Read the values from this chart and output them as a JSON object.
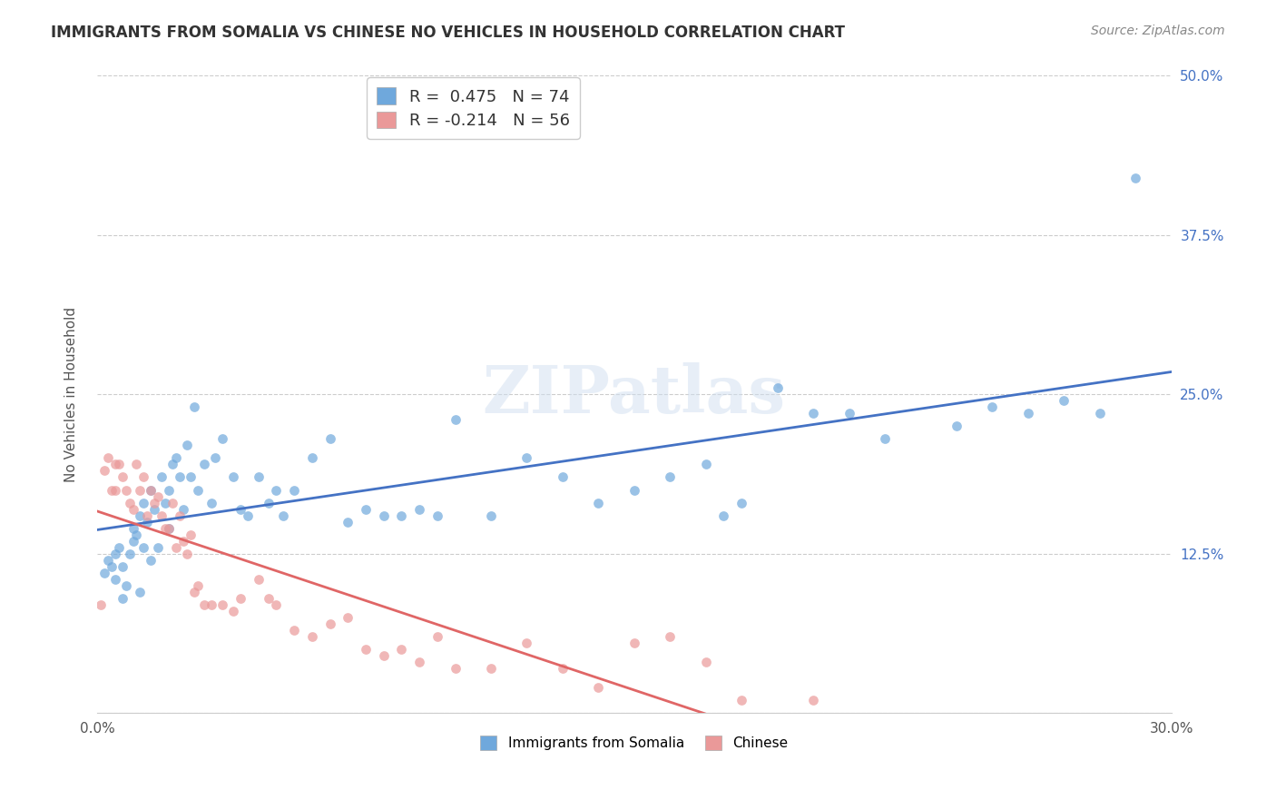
{
  "title": "IMMIGRANTS FROM SOMALIA VS CHINESE NO VEHICLES IN HOUSEHOLD CORRELATION CHART",
  "source": "Source: ZipAtlas.com",
  "xlabel_bottom": "",
  "ylabel": "No Vehicles in Household",
  "xlim": [
    0.0,
    0.3
  ],
  "ylim": [
    0.0,
    0.5
  ],
  "xticks": [
    0.0,
    0.05,
    0.1,
    0.15,
    0.2,
    0.25,
    0.3
  ],
  "yticks_right": [
    0.0,
    0.125,
    0.25,
    0.375,
    0.5
  ],
  "ytick_labels_right": [
    "",
    "12.5%",
    "25.0%",
    "37.5%",
    "50.0%"
  ],
  "xtick_labels": [
    "0.0%",
    "",
    "",
    "",
    "",
    "",
    "30.0%"
  ],
  "legend_blue_label": "Immigrants from Somalia",
  "legend_pink_label": "Chinese",
  "R_blue": 0.475,
  "N_blue": 74,
  "R_pink": -0.214,
  "N_pink": 56,
  "color_blue": "#6fa8dc",
  "color_pink": "#ea9999",
  "line_color_blue": "#4472c4",
  "line_color_pink": "#e06666",
  "watermark": "ZIPatlas",
  "blue_scatter_x": [
    0.002,
    0.003,
    0.004,
    0.005,
    0.005,
    0.006,
    0.007,
    0.007,
    0.008,
    0.009,
    0.01,
    0.01,
    0.011,
    0.012,
    0.012,
    0.013,
    0.013,
    0.014,
    0.015,
    0.015,
    0.016,
    0.017,
    0.018,
    0.019,
    0.02,
    0.02,
    0.021,
    0.022,
    0.023,
    0.024,
    0.025,
    0.026,
    0.027,
    0.028,
    0.03,
    0.032,
    0.033,
    0.035,
    0.038,
    0.04,
    0.042,
    0.045,
    0.048,
    0.05,
    0.052,
    0.055,
    0.06,
    0.065,
    0.07,
    0.075,
    0.08,
    0.085,
    0.09,
    0.095,
    0.1,
    0.11,
    0.12,
    0.13,
    0.14,
    0.15,
    0.16,
    0.17,
    0.175,
    0.18,
    0.19,
    0.2,
    0.21,
    0.22,
    0.24,
    0.25,
    0.26,
    0.27,
    0.28,
    0.29
  ],
  "blue_scatter_y": [
    0.11,
    0.12,
    0.115,
    0.125,
    0.105,
    0.13,
    0.09,
    0.115,
    0.1,
    0.125,
    0.135,
    0.145,
    0.14,
    0.155,
    0.095,
    0.13,
    0.165,
    0.15,
    0.12,
    0.175,
    0.16,
    0.13,
    0.185,
    0.165,
    0.145,
    0.175,
    0.195,
    0.2,
    0.185,
    0.16,
    0.21,
    0.185,
    0.24,
    0.175,
    0.195,
    0.165,
    0.2,
    0.215,
    0.185,
    0.16,
    0.155,
    0.185,
    0.165,
    0.175,
    0.155,
    0.175,
    0.2,
    0.215,
    0.15,
    0.16,
    0.155,
    0.155,
    0.16,
    0.155,
    0.23,
    0.155,
    0.2,
    0.185,
    0.165,
    0.175,
    0.185,
    0.195,
    0.155,
    0.165,
    0.255,
    0.235,
    0.235,
    0.215,
    0.225,
    0.24,
    0.235,
    0.245,
    0.235,
    0.42
  ],
  "pink_scatter_x": [
    0.001,
    0.002,
    0.003,
    0.004,
    0.005,
    0.005,
    0.006,
    0.007,
    0.008,
    0.009,
    0.01,
    0.011,
    0.012,
    0.013,
    0.014,
    0.015,
    0.016,
    0.017,
    0.018,
    0.019,
    0.02,
    0.021,
    0.022,
    0.023,
    0.024,
    0.025,
    0.026,
    0.027,
    0.028,
    0.03,
    0.032,
    0.035,
    0.038,
    0.04,
    0.045,
    0.048,
    0.05,
    0.055,
    0.06,
    0.065,
    0.07,
    0.075,
    0.08,
    0.085,
    0.09,
    0.095,
    0.1,
    0.11,
    0.12,
    0.13,
    0.14,
    0.15,
    0.16,
    0.17,
    0.18,
    0.2
  ],
  "pink_scatter_y": [
    0.085,
    0.19,
    0.2,
    0.175,
    0.195,
    0.175,
    0.195,
    0.185,
    0.175,
    0.165,
    0.16,
    0.195,
    0.175,
    0.185,
    0.155,
    0.175,
    0.165,
    0.17,
    0.155,
    0.145,
    0.145,
    0.165,
    0.13,
    0.155,
    0.135,
    0.125,
    0.14,
    0.095,
    0.1,
    0.085,
    0.085,
    0.085,
    0.08,
    0.09,
    0.105,
    0.09,
    0.085,
    0.065,
    0.06,
    0.07,
    0.075,
    0.05,
    0.045,
    0.05,
    0.04,
    0.06,
    0.035,
    0.035,
    0.055,
    0.035,
    0.02,
    0.055,
    0.06,
    0.04,
    0.01,
    0.01
  ]
}
